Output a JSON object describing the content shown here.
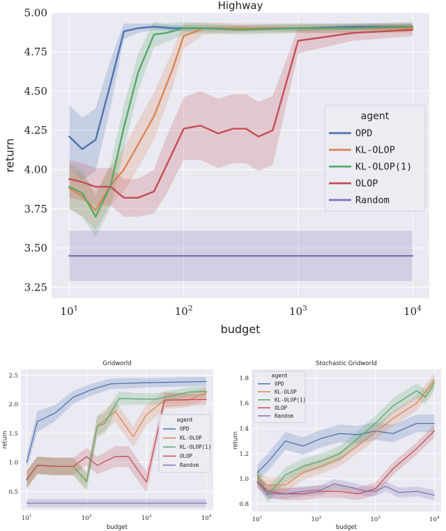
{
  "chart_data": [
    {
      "type": "line",
      "title": "Highway",
      "xlabel": "budget",
      "ylabel": "return",
      "xscale": "log",
      "xlim": [
        7,
        14000
      ],
      "ylim": [
        3.18,
        5.0
      ],
      "xticks": [
        10,
        100,
        1000,
        10000
      ],
      "xtick_labels": [
        "10^1",
        "10^2",
        "10^3",
        "10^4"
      ],
      "yticks": [
        3.25,
        3.5,
        3.75,
        4.0,
        4.25,
        4.5,
        4.75,
        5.0
      ],
      "ytick_labels": [
        "3.25",
        "3.50",
        "3.75",
        "4.00",
        "4.25",
        "4.50",
        "4.75",
        "5.00"
      ],
      "legend": {
        "title": "agent",
        "position": "center-right"
      },
      "series": [
        {
          "name": "OPD",
          "color": "#4c72b0",
          "x": [
            10,
            13,
            17,
            23,
            30,
            40,
            55,
            80,
            150,
            300,
            600,
            1000,
            3000,
            10000
          ],
          "y": [
            4.21,
            4.13,
            4.19,
            4.55,
            4.88,
            4.9,
            4.91,
            4.9,
            4.9,
            4.9,
            4.9,
            4.9,
            4.91,
            4.91
          ],
          "err": [
            0.2,
            0.2,
            0.2,
            0.15,
            0.05,
            0.03,
            0.02,
            0.02,
            0.02,
            0.02,
            0.02,
            0.02,
            0.02,
            0.02
          ]
        },
        {
          "name": "KL-OLOP",
          "color": "#dd8452",
          "x": [
            10,
            13,
            17,
            23,
            30,
            40,
            55,
            80,
            100,
            150,
            300,
            1000,
            3000,
            10000
          ],
          "y": [
            3.88,
            3.83,
            3.74,
            3.9,
            4.0,
            4.16,
            4.34,
            4.64,
            4.85,
            4.9,
            4.9,
            4.9,
            4.9,
            4.9
          ],
          "err": [
            0.13,
            0.13,
            0.12,
            0.12,
            0.14,
            0.15,
            0.15,
            0.12,
            0.08,
            0.04,
            0.03,
            0.03,
            0.03,
            0.03
          ]
        },
        {
          "name": "KL-OLOP(1)",
          "color": "#55a868",
          "x": [
            10,
            13,
            17,
            23,
            30,
            40,
            55,
            70,
            100,
            150,
            300,
            1000,
            3000,
            10000
          ],
          "y": [
            3.89,
            3.85,
            3.7,
            3.9,
            4.27,
            4.62,
            4.86,
            4.87,
            4.9,
            4.9,
            4.89,
            4.9,
            4.9,
            4.91
          ],
          "err": [
            0.14,
            0.15,
            0.13,
            0.14,
            0.14,
            0.12,
            0.08,
            0.06,
            0.04,
            0.03,
            0.03,
            0.03,
            0.03,
            0.03
          ]
        },
        {
          "name": "OLOP",
          "color": "#c44e52",
          "x": [
            10,
            13,
            17,
            23,
            30,
            40,
            55,
            70,
            100,
            140,
            200,
            270,
            350,
            450,
            600,
            1000,
            3000,
            10000
          ],
          "y": [
            3.94,
            3.92,
            3.89,
            3.89,
            3.82,
            3.82,
            3.86,
            4.02,
            4.26,
            4.28,
            4.23,
            4.26,
            4.26,
            4.21,
            4.25,
            4.82,
            4.87,
            4.89
          ],
          "err": [
            0.12,
            0.12,
            0.12,
            0.12,
            0.12,
            0.12,
            0.14,
            0.18,
            0.2,
            0.22,
            0.22,
            0.22,
            0.22,
            0.22,
            0.22,
            0.08,
            0.05,
            0.04
          ]
        },
        {
          "name": "Random",
          "color": "#8172b3",
          "x": [
            10,
            10000
          ],
          "y": [
            3.45,
            3.45
          ],
          "err": [
            0.16,
            0.16
          ]
        }
      ]
    },
    {
      "type": "line",
      "title": "Gridworld",
      "xlabel": "budget",
      "ylabel": "return",
      "xscale": "log",
      "xlim": [
        8,
        13000
      ],
      "ylim": [
        0.18,
        2.6
      ],
      "xticks": [
        10,
        100,
        1000,
        10000
      ],
      "xtick_labels": [
        "10^1",
        "10^2",
        "10^3",
        "10^4"
      ],
      "yticks": [
        0.5,
        1.0,
        1.5,
        2.0,
        2.5
      ],
      "ytick_labels": [
        "0.5",
        "1.0",
        "1.5",
        "2.0",
        "2.5"
      ],
      "legend": {
        "title": "agent",
        "position": "center-right"
      },
      "series": [
        {
          "name": "OPD",
          "color": "#4c72b0",
          "x": [
            10,
            15,
            30,
            60,
            120,
            250,
            500,
            1000,
            3000,
            10000
          ],
          "y": [
            1.0,
            1.7,
            1.85,
            2.12,
            2.25,
            2.35,
            2.36,
            2.37,
            2.38,
            2.39
          ],
          "err": [
            0.12,
            0.18,
            0.14,
            0.11,
            0.1,
            0.09,
            0.09,
            0.08,
            0.08,
            0.08
          ]
        },
        {
          "name": "KL-OLOP",
          "color": "#dd8452",
          "x": [
            10,
            15,
            30,
            60,
            100,
            150,
            300,
            600,
            1000,
            2000,
            5000,
            10000
          ],
          "y": [
            0.71,
            0.95,
            0.93,
            0.93,
            0.68,
            1.62,
            1.88,
            1.44,
            1.82,
            2.07,
            2.07,
            2.2
          ],
          "err": [
            0.15,
            0.15,
            0.15,
            0.15,
            0.15,
            0.18,
            0.18,
            0.18,
            0.18,
            0.15,
            0.12,
            0.1
          ]
        },
        {
          "name": "KL-OLOP(1)",
          "color": "#55a868",
          "x": [
            10,
            15,
            30,
            60,
            100,
            150,
            200,
            350,
            700,
            1500,
            5000,
            10000
          ],
          "y": [
            0.71,
            0.95,
            0.93,
            0.93,
            0.67,
            1.62,
            1.67,
            2.1,
            2.09,
            2.09,
            2.21,
            2.22
          ],
          "err": [
            0.15,
            0.15,
            0.15,
            0.15,
            0.15,
            0.18,
            0.18,
            0.12,
            0.1,
            0.1,
            0.08,
            0.08
          ]
        },
        {
          "name": "OLOP",
          "color": "#c44e52",
          "x": [
            10,
            15,
            30,
            60,
            100,
            150,
            300,
            500,
            1000,
            2000,
            5000,
            10000
          ],
          "y": [
            0.7,
            0.95,
            0.93,
            0.93,
            1.1,
            0.95,
            1.1,
            1.1,
            0.66,
            2.07,
            2.08,
            2.08
          ],
          "err": [
            0.15,
            0.15,
            0.15,
            0.15,
            0.15,
            0.15,
            0.18,
            0.18,
            0.18,
            0.12,
            0.1,
            0.1
          ]
        },
        {
          "name": "Random",
          "color": "#8172b3",
          "x": [
            10,
            10000
          ],
          "y": [
            0.3,
            0.3
          ],
          "err": [
            0.07,
            0.07
          ]
        }
      ]
    },
    {
      "type": "line",
      "title": "Stochastic Gridworld",
      "xlabel": "budget",
      "ylabel": "return",
      "xscale": "log",
      "xlim": [
        8,
        13000
      ],
      "ylim": [
        0.74,
        1.87
      ],
      "xticks": [
        10,
        100,
        1000,
        10000
      ],
      "xtick_labels": [
        "10^1",
        "10^2",
        "10^3",
        "10^4"
      ],
      "yticks": [
        0.8,
        1.0,
        1.2,
        1.4,
        1.6,
        1.8
      ],
      "ytick_labels": [
        "0.8",
        "1.0",
        "1.2",
        "1.4",
        "1.6",
        "1.8"
      ],
      "legend": {
        "title": "agent",
        "position": "top-left"
      },
      "series": [
        {
          "name": "OPD",
          "color": "#4c72b0",
          "x": [
            10,
            15,
            30,
            60,
            120,
            250,
            500,
            1000,
            2000,
            5000,
            10000
          ],
          "y": [
            1.05,
            1.13,
            1.3,
            1.26,
            1.32,
            1.36,
            1.35,
            1.38,
            1.36,
            1.44,
            1.44
          ],
          "err": [
            0.06,
            0.07,
            0.07,
            0.07,
            0.07,
            0.07,
            0.07,
            0.07,
            0.07,
            0.07,
            0.07
          ]
        },
        {
          "name": "KL-OLOP",
          "color": "#dd8452",
          "x": [
            10,
            15,
            30,
            60,
            120,
            250,
            500,
            1000,
            2000,
            5000,
            10000
          ],
          "y": [
            1.0,
            0.95,
            0.95,
            1.05,
            1.1,
            1.16,
            1.26,
            1.37,
            1.48,
            1.6,
            1.78
          ],
          "err": [
            0.06,
            0.06,
            0.06,
            0.06,
            0.06,
            0.06,
            0.06,
            0.06,
            0.06,
            0.06,
            0.06
          ]
        },
        {
          "name": "KL-OLOP(1)",
          "color": "#55a868",
          "x": [
            10,
            15,
            30,
            60,
            120,
            250,
            500,
            1000,
            2000,
            5000,
            7000,
            10000
          ],
          "y": [
            1.03,
            0.87,
            1.03,
            1.1,
            1.14,
            1.2,
            1.32,
            1.44,
            1.58,
            1.7,
            1.65,
            1.76
          ],
          "err": [
            0.06,
            0.06,
            0.06,
            0.06,
            0.06,
            0.06,
            0.06,
            0.06,
            0.06,
            0.06,
            0.06,
            0.06
          ]
        },
        {
          "name": "OLOP",
          "color": "#c44e52",
          "x": [
            10,
            15,
            30,
            60,
            120,
            250,
            500,
            1000,
            2000,
            5000,
            10000
          ],
          "y": [
            0.98,
            0.9,
            0.88,
            0.88,
            0.9,
            0.9,
            0.88,
            0.92,
            1.08,
            1.24,
            1.38
          ],
          "err": [
            0.05,
            0.05,
            0.05,
            0.05,
            0.05,
            0.05,
            0.05,
            0.05,
            0.05,
            0.05,
            0.05
          ]
        },
        {
          "name": "Random",
          "color": "#8172b3",
          "x": [
            10,
            15,
            30,
            60,
            120,
            200,
            400,
            700,
            1000,
            1500,
            2500,
            5000,
            10000
          ],
          "y": [
            0.97,
            0.88,
            0.88,
            0.9,
            0.91,
            0.96,
            0.93,
            0.9,
            0.9,
            0.94,
            0.89,
            0.9,
            0.87
          ],
          "err": [
            0.04,
            0.04,
            0.04,
            0.04,
            0.04,
            0.04,
            0.04,
            0.04,
            0.04,
            0.04,
            0.04,
            0.04,
            0.04
          ]
        }
      ]
    }
  ]
}
